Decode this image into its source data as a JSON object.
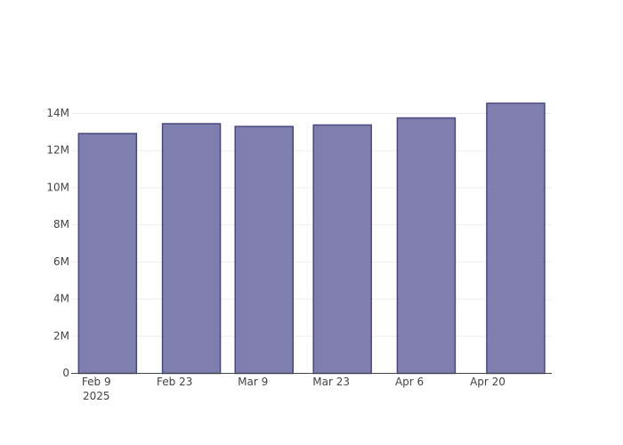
{
  "chart_data": {
    "type": "bar",
    "x": [
      "2025-02-11T00:00",
      "2025-02-26T00:00",
      "2025-03-11T00:00",
      "2025-03-25T00:00",
      "2025-04-09T00:00",
      "2025-04-25T00:00"
    ],
    "values": [
      12920000,
      13450000,
      13300000,
      13380000,
      13760000,
      14550000
    ],
    "color": "#7f7faf",
    "edge_color": "#48487f",
    "xlim": [
      "2025-02-04T12:00",
      "2025-05-01T11:00"
    ],
    "xticks": [
      {
        "value": "2025-02-09T00:00",
        "label": "Feb 9"
      },
      {
        "value": "2025-02-23T00:00",
        "label": "Feb 23"
      },
      {
        "value": "2025-03-09T00:00",
        "label": "Mar 9"
      },
      {
        "value": "2025-03-23T00:00",
        "label": "Mar 23"
      },
      {
        "value": "2025-04-06T00:00",
        "label": "Apr 6"
      },
      {
        "value": "2025-04-20T00:00",
        "label": "Apr 20"
      }
    ],
    "x_year": "2025",
    "ylim": [
      0,
      15530000
    ],
    "yticks": [
      0,
      {
        "value": 2000000,
        "label": "2M"
      },
      {
        "value": 4000000,
        "label": "4M"
      },
      {
        "value": 6000000,
        "label": "6M"
      },
      {
        "value": 8000000,
        "label": "8M"
      },
      {
        "value": 10000000,
        "label": "10M"
      },
      {
        "value": 12000000,
        "label": "12M"
      },
      {
        "value": 14000000,
        "label": "14M"
      }
    ],
    "grid": true
  }
}
